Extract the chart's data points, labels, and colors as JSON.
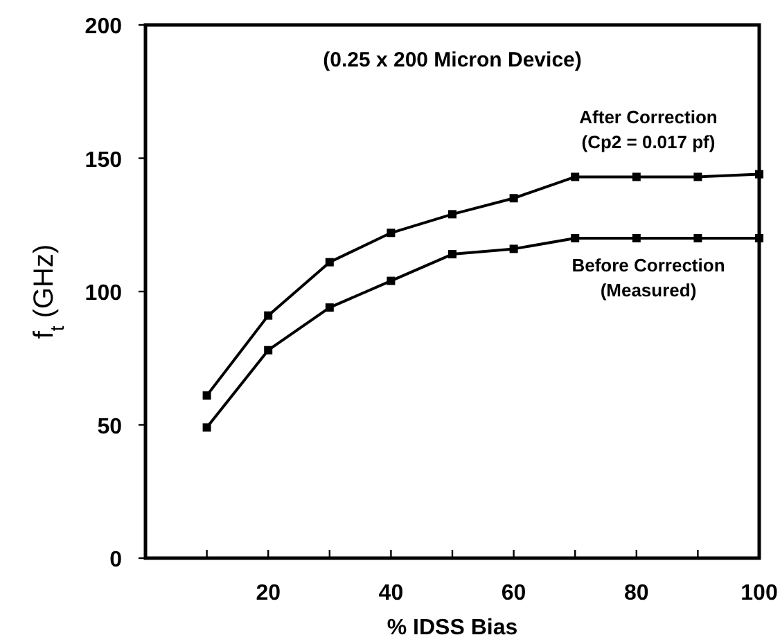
{
  "chart_data": {
    "type": "line",
    "title": "(0.25 x 200 Micron Device)",
    "xlabel": "% IDSS Bias",
    "ylabel": "f$_{t}$ (GHz)",
    "x": [
      10,
      20,
      30,
      40,
      50,
      60,
      70,
      80,
      90,
      100
    ],
    "series": [
      {
        "name": "After Correction",
        "color": "#000000",
        "values": [
          61,
          91,
          111,
          122,
          129,
          135,
          143,
          143,
          143,
          144
        ]
      },
      {
        "name": "Before Correction",
        "color": "#000000",
        "values": [
          49,
          78,
          94,
          104,
          114,
          116,
          120,
          120,
          120,
          120
        ]
      }
    ],
    "annotations": [
      "(Cp2 = 0.017 pf)",
      "(Measured)"
    ],
    "xlim": [
      0,
      100
    ],
    "ylim": [
      0,
      200
    ],
    "xticks": [
      {
        "value": 10,
        "label": null
      },
      20,
      {
        "value": 30,
        "label": null
      },
      40,
      {
        "value": 50,
        "label": null
      },
      60,
      {
        "value": 70,
        "label": null
      },
      80,
      {
        "value": 90,
        "label": null
      },
      100
    ],
    "yticks": [
      0,
      50,
      100,
      150,
      200
    ],
    "grid": false,
    "marker": "square",
    "line_style": "solid"
  }
}
